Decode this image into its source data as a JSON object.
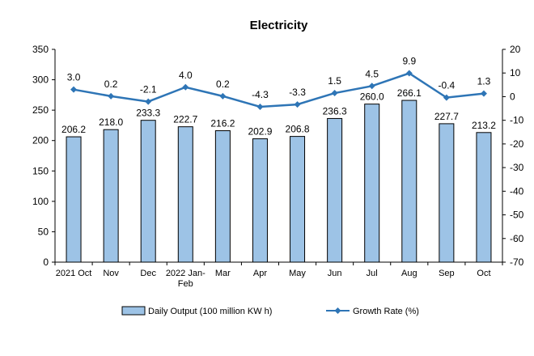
{
  "chart_data": {
    "type": "bar",
    "title": "Electricity",
    "categories": [
      "2021 Oct",
      "Nov",
      "Dec",
      "2022 Jan-Feb",
      "Mar",
      "Apr",
      "May",
      "Jun",
      "Jul",
      "Aug",
      "Sep",
      "Oct"
    ],
    "category_lines": [
      [
        "2021 Oct"
      ],
      [
        "Nov"
      ],
      [
        "Dec"
      ],
      [
        "2022 Jan-",
        "Feb"
      ],
      [
        "Mar"
      ],
      [
        "Apr"
      ],
      [
        "May"
      ],
      [
        "Jun"
      ],
      [
        "Jul"
      ],
      [
        "Aug"
      ],
      [
        "Sep"
      ],
      [
        "Oct"
      ]
    ],
    "series": [
      {
        "name": "Daily Output (100 million KW h)",
        "type": "bar",
        "axis": "left",
        "color": "#9DC3E6",
        "values": [
          206.2,
          218.0,
          233.3,
          222.7,
          216.2,
          202.9,
          206.8,
          236.3,
          260.0,
          266.1,
          227.7,
          213.2
        ],
        "labels": [
          "206.2",
          "218.0",
          "233.3",
          "222.7",
          "216.2",
          "202.9",
          "206.8",
          "236.3",
          "260.0",
          "266.1",
          "227.7",
          "213.2"
        ]
      },
      {
        "name": "Growth Rate (%)",
        "type": "line",
        "axis": "right",
        "color": "#2E75B6",
        "values": [
          3.0,
          0.2,
          -2.1,
          4.0,
          0.2,
          -4.3,
          -3.3,
          1.5,
          4.5,
          9.9,
          -0.4,
          1.3
        ],
        "labels": [
          "3.0",
          "0.2",
          "-2.1",
          "4.0",
          "0.2",
          "-4.3",
          "-3.3",
          "1.5",
          "4.5",
          "9.9",
          "-0.4",
          "1.3"
        ]
      }
    ],
    "y_left": {
      "min": 0,
      "max": 350,
      "step": 50,
      "ticks": [
        "0",
        "50",
        "100",
        "150",
        "200",
        "250",
        "300",
        "350"
      ]
    },
    "y_right": {
      "min": -70,
      "max": 20,
      "step": 10,
      "ticks": [
        "-70",
        "-60",
        "-50",
        "-40",
        "-30",
        "-20",
        "-10",
        "0",
        "10",
        "20"
      ]
    },
    "grid": false,
    "legend_position": "bottom"
  }
}
